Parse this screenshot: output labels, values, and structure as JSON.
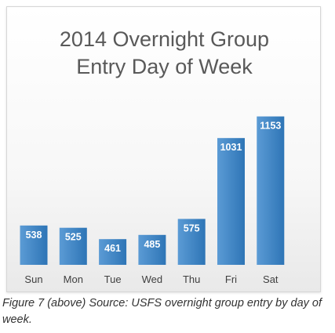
{
  "chart_data": {
    "type": "bar",
    "title_line1": "2014 Overnight Group",
    "title_line2": "Entry Day of Week",
    "categories": [
      "Sun",
      "Mon",
      "Tue",
      "Wed",
      "Thu",
      "Fri",
      "Sat"
    ],
    "values": [
      538,
      525,
      461,
      485,
      575,
      1031,
      1153
    ],
    "data_labels": [
      "538",
      "525",
      "461",
      "485",
      "575",
      "1031",
      "1153"
    ],
    "xlabel": "",
    "ylabel": "",
    "ylim": [
      400,
      1200
    ],
    "grid": false,
    "legend": "none",
    "colors": {
      "bar_top": "#5b9bd5",
      "bar_bottom": "#2e75b6",
      "label": "#ffffff",
      "tick_label": "#404040"
    }
  },
  "caption": "Figure 7 (above) Source: USFS overnight group entry by day of week."
}
